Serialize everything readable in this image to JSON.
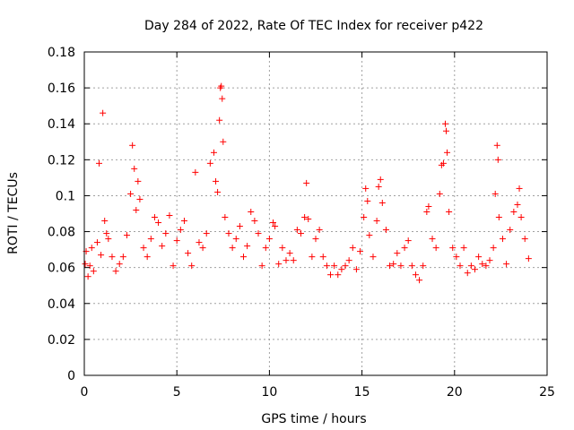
{
  "chart_data": {
    "type": "scatter",
    "title": "Day 284 of 2022, Rate Of TEC Index for receiver p422",
    "xlabel": "GPS time / hours",
    "ylabel": "ROTI / TECUs",
    "xlim": [
      0,
      25
    ],
    "ylim": [
      0,
      0.18
    ],
    "xticks": [
      "0",
      "5",
      "10",
      "15",
      "20",
      "25"
    ],
    "yticks": [
      "0",
      "0.02",
      "0.04",
      "0.06",
      "0.08",
      "0.1",
      "0.12",
      "0.14",
      "0.16",
      "0.18"
    ],
    "grid": true,
    "marker": "+",
    "color": "#ff0000",
    "series": [
      {
        "values": [
          [
            0.05,
            0.062
          ],
          [
            0.1,
            0.069
          ],
          [
            0.2,
            0.055
          ],
          [
            0.3,
            0.061
          ],
          [
            0.4,
            0.071
          ],
          [
            0.5,
            0.058
          ],
          [
            0.7,
            0.074
          ],
          [
            0.8,
            0.118
          ],
          [
            0.9,
            0.067
          ],
          [
            1.0,
            0.146
          ],
          [
            1.1,
            0.086
          ],
          [
            1.2,
            0.079
          ],
          [
            1.3,
            0.076
          ],
          [
            1.5,
            0.066
          ],
          [
            1.7,
            0.058
          ],
          [
            1.9,
            0.062
          ],
          [
            2.1,
            0.066
          ],
          [
            2.3,
            0.078
          ],
          [
            2.5,
            0.101
          ],
          [
            2.6,
            0.128
          ],
          [
            2.7,
            0.115
          ],
          [
            2.8,
            0.092
          ],
          [
            2.9,
            0.108
          ],
          [
            3.0,
            0.098
          ],
          [
            3.2,
            0.071
          ],
          [
            3.4,
            0.066
          ],
          [
            3.6,
            0.076
          ],
          [
            3.8,
            0.088
          ],
          [
            4.0,
            0.085
          ],
          [
            4.2,
            0.072
          ],
          [
            4.4,
            0.079
          ],
          [
            4.6,
            0.089
          ],
          [
            4.8,
            0.061
          ],
          [
            5.0,
            0.075
          ],
          [
            5.2,
            0.081
          ],
          [
            5.4,
            0.086
          ],
          [
            5.6,
            0.068
          ],
          [
            5.8,
            0.061
          ],
          [
            6.0,
            0.113
          ],
          [
            6.2,
            0.074
          ],
          [
            6.4,
            0.071
          ],
          [
            6.6,
            0.079
          ],
          [
            6.8,
            0.118
          ],
          [
            7.0,
            0.124
          ],
          [
            7.1,
            0.108
          ],
          [
            7.2,
            0.102
          ],
          [
            7.3,
            0.142
          ],
          [
            7.35,
            0.16
          ],
          [
            7.4,
            0.161
          ],
          [
            7.45,
            0.154
          ],
          [
            7.5,
            0.13
          ],
          [
            7.6,
            0.088
          ],
          [
            7.8,
            0.079
          ],
          [
            8.0,
            0.071
          ],
          [
            8.2,
            0.076
          ],
          [
            8.4,
            0.083
          ],
          [
            8.6,
            0.066
          ],
          [
            8.8,
            0.072
          ],
          [
            9.0,
            0.091
          ],
          [
            9.2,
            0.086
          ],
          [
            9.4,
            0.079
          ],
          [
            9.6,
            0.061
          ],
          [
            9.8,
            0.071
          ],
          [
            10.0,
            0.076
          ],
          [
            10.2,
            0.085
          ],
          [
            10.3,
            0.083
          ],
          [
            10.5,
            0.062
          ],
          [
            10.7,
            0.071
          ],
          [
            10.9,
            0.064
          ],
          [
            11.1,
            0.068
          ],
          [
            11.3,
            0.064
          ],
          [
            11.5,
            0.081
          ],
          [
            11.7,
            0.079
          ],
          [
            11.9,
            0.088
          ],
          [
            12.0,
            0.107
          ],
          [
            12.1,
            0.087
          ],
          [
            12.3,
            0.066
          ],
          [
            12.5,
            0.076
          ],
          [
            12.7,
            0.081
          ],
          [
            12.9,
            0.066
          ],
          [
            13.1,
            0.061
          ],
          [
            13.3,
            0.056
          ],
          [
            13.5,
            0.061
          ],
          [
            13.7,
            0.056
          ],
          [
            13.9,
            0.059
          ],
          [
            14.1,
            0.061
          ],
          [
            14.3,
            0.064
          ],
          [
            14.5,
            0.071
          ],
          [
            14.7,
            0.059
          ],
          [
            14.9,
            0.069
          ],
          [
            15.1,
            0.088
          ],
          [
            15.2,
            0.104
          ],
          [
            15.3,
            0.097
          ],
          [
            15.4,
            0.078
          ],
          [
            15.6,
            0.066
          ],
          [
            15.8,
            0.086
          ],
          [
            15.9,
            0.105
          ],
          [
            16.0,
            0.109
          ],
          [
            16.1,
            0.096
          ],
          [
            16.3,
            0.081
          ],
          [
            16.5,
            0.061
          ],
          [
            16.7,
            0.062
          ],
          [
            16.9,
            0.068
          ],
          [
            17.1,
            0.061
          ],
          [
            17.3,
            0.071
          ],
          [
            17.5,
            0.075
          ],
          [
            17.7,
            0.061
          ],
          [
            17.9,
            0.056
          ],
          [
            18.1,
            0.053
          ],
          [
            18.3,
            0.061
          ],
          [
            18.5,
            0.091
          ],
          [
            18.6,
            0.094
          ],
          [
            18.8,
            0.076
          ],
          [
            19.0,
            0.071
          ],
          [
            19.2,
            0.101
          ],
          [
            19.3,
            0.117
          ],
          [
            19.4,
            0.118
          ],
          [
            19.5,
            0.14
          ],
          [
            19.55,
            0.136
          ],
          [
            19.6,
            0.124
          ],
          [
            19.7,
            0.091
          ],
          [
            19.9,
            0.071
          ],
          [
            20.1,
            0.066
          ],
          [
            20.3,
            0.061
          ],
          [
            20.5,
            0.071
          ],
          [
            20.7,
            0.057
          ],
          [
            20.9,
            0.061
          ],
          [
            21.1,
            0.059
          ],
          [
            21.3,
            0.066
          ],
          [
            21.5,
            0.062
          ],
          [
            21.7,
            0.061
          ],
          [
            21.9,
            0.064
          ],
          [
            22.1,
            0.071
          ],
          [
            22.2,
            0.101
          ],
          [
            22.3,
            0.128
          ],
          [
            22.35,
            0.12
          ],
          [
            22.4,
            0.088
          ],
          [
            22.6,
            0.076
          ],
          [
            22.8,
            0.062
          ],
          [
            23.0,
            0.081
          ],
          [
            23.2,
            0.091
          ],
          [
            23.4,
            0.095
          ],
          [
            23.5,
            0.104
          ],
          [
            23.6,
            0.088
          ],
          [
            23.8,
            0.076
          ],
          [
            24.0,
            0.065
          ]
        ]
      }
    ]
  }
}
